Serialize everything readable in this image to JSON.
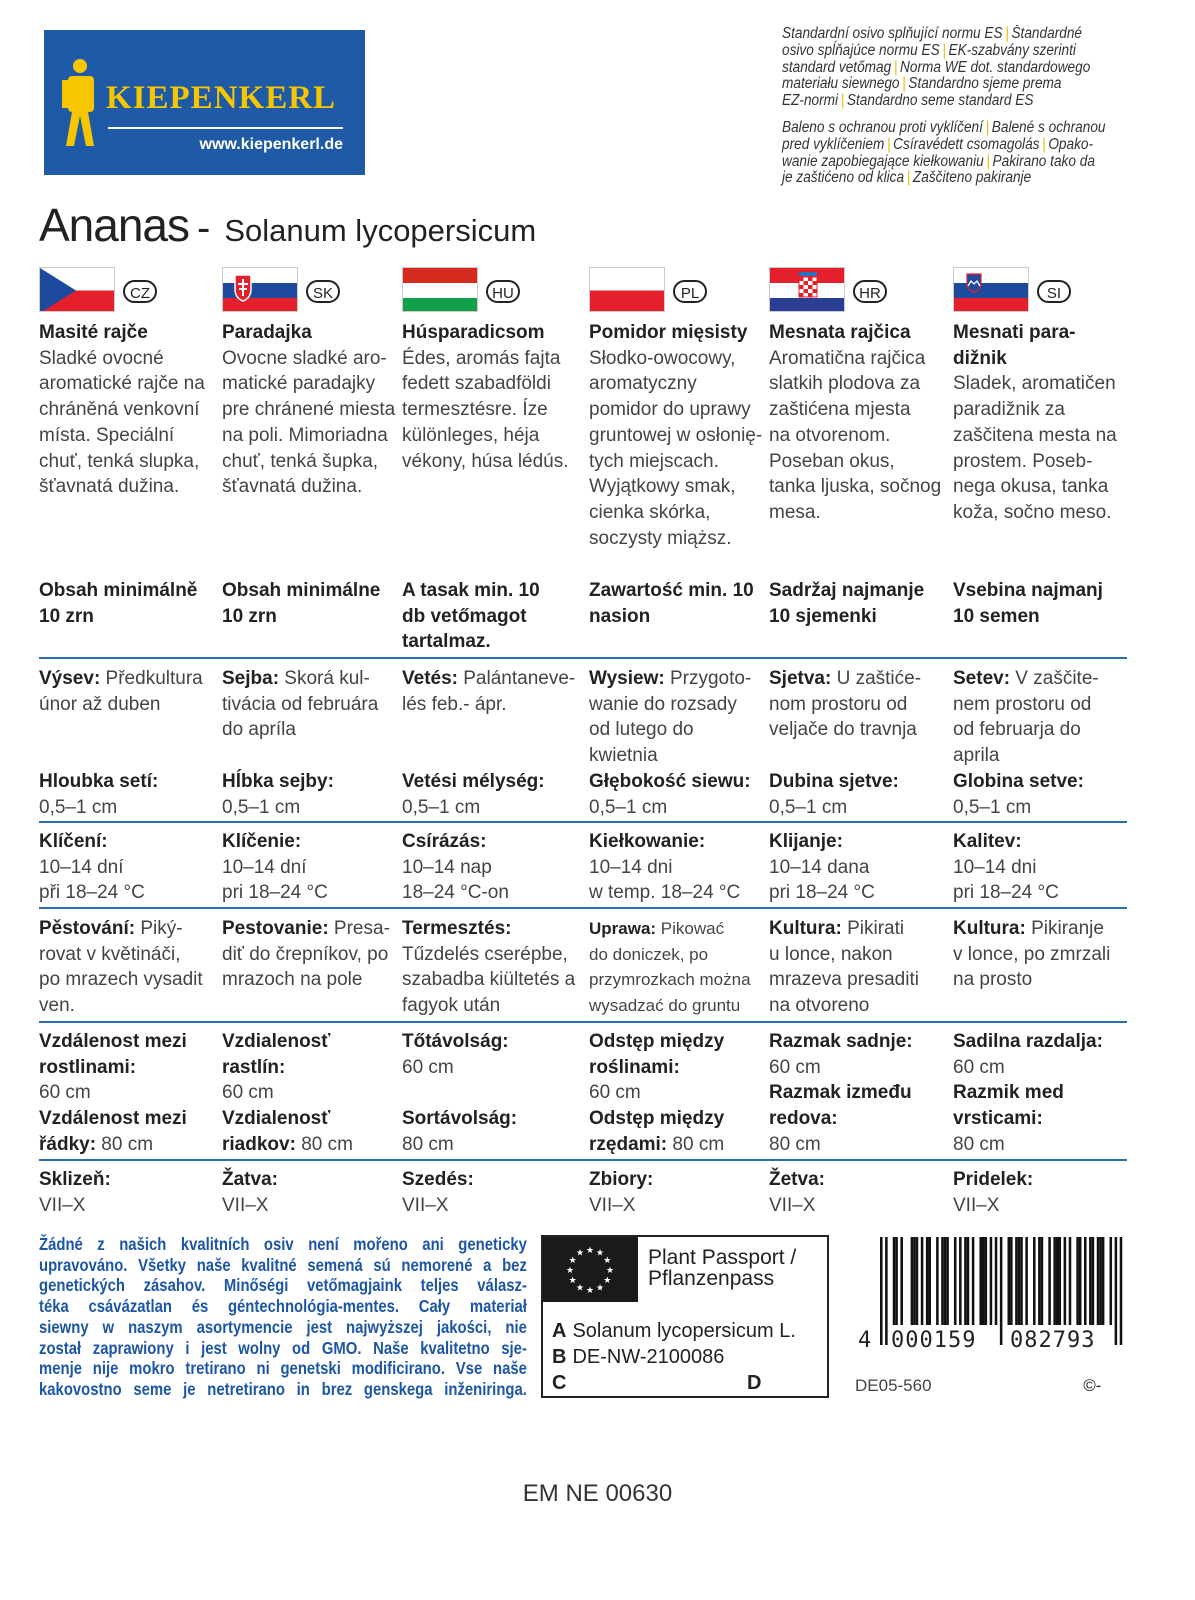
{
  "logo": {
    "brand": "KIEPENKERL",
    "url": "www.kiepenkerl.de",
    "color": "#1f5aa6"
  },
  "standards": [
    [
      [
        "Standardní osivo splňující normu ES",
        "Štandardné"
      ],
      [
        "osivo spĺňajúce normu ES",
        "EK-szabvány szerinti"
      ],
      [
        "standard vetőmag",
        "Norma WE dot. standardowego"
      ],
      [
        "materiału siewnego",
        "Standardno sjeme prema"
      ],
      [
        "EZ-normi",
        "Standardno seme standard ES"
      ]
    ],
    [
      [
        "Baleno s ochranou proti vyklíčení",
        "Balené s ochranou"
      ],
      [
        "pred vyklíčeniem",
        "Csíravédett csomagolás",
        "Opako-"
      ],
      [
        "wanie zapobiegające kiełkowaniu",
        "Pakirano tako da"
      ],
      [
        "je zaštićeno od klica",
        "Zaščiteno pakiranje"
      ]
    ]
  ],
  "title": {
    "name": "Ananas",
    "dash": "-",
    "latin": "Solanum lycopersicum"
  },
  "columns": [
    {
      "code": "CZ",
      "flag": "cz",
      "name": "Masité rajče",
      "desc": "Sladké ovocné\naromatické rajče na\nchráněná venkovní\nmísta. Speciální\nchuť, tenká slupka,\nšťavnatá dužina.",
      "min": "Obsah minimálně\n10 zrn",
      "sow_l": "Výsev:",
      "sow_t": " Předkultura\núnor až duben",
      "dep_l": "Hloubka setí:",
      "dep_v": "0,5–1 cm",
      "ger_l": "Klíčení:",
      "ger_v": "10–14 dní\npři 18–24 °C",
      "gro_l": "Pěstování:",
      "gro_t": " Piký-\nrovat v květináči,\npo mrazech vysadit\nven.",
      "sp1_l": "Vzdálenost mezi\nrostlinami:",
      "sp1_v": "\n60 cm",
      "sp2_l": "Vzdálenost mezi\nřádky:",
      "sp2_v": " 80 cm",
      "har_l": "Sklizeň:",
      "har_v": "VII–X"
    },
    {
      "code": "SK",
      "flag": "sk",
      "name": "Paradajka",
      "desc": "Ovocne sladké aro-\nmatické paradajky\npre chránené miesta\nna poli. Mimoriadna\nchuť, tenká šupka,\nšťavnatá dužina.",
      "min": "Obsah minimálne\n10 zrn",
      "sow_l": "Sejba:",
      "sow_t": " Skorá kul-\ntivácia od februára\ndo apríla",
      "dep_l": "Hĺbka sejby:",
      "dep_v": "0,5–1 cm",
      "ger_l": "Klíčenie:",
      "ger_v": "10–14 dní\npri 18–24 °C",
      "gro_l": "Pestovanie:",
      "gro_t": " Presa-\ndiť do črepníkov, po\nmrazoch na pole",
      "sp1_l": "Vzdialenosť\nrastlín:",
      "sp1_v": "\n60 cm",
      "sp2_l": "Vzdialenosť\nriadkov:",
      "sp2_v": " 80 cm",
      "har_l": "Žatva:",
      "har_v": "VII–X"
    },
    {
      "code": "HU",
      "flag": "hu",
      "name": "Húsparadicsom",
      "desc": "Édes, aromás fajta\nfedett szabadföldi\ntermesztésre. Íze\nkülönleges, héja\nvékony, húsa lédús.",
      "min": "A tasak min. 10\ndb vetőmagot\ntartalmaz.",
      "sow_l": "Vetés:",
      "sow_t": " Palántaneve-\nlés feb.- ápr.",
      "dep_l": "Vetési mélység:",
      "dep_v": "0,5–1 cm",
      "ger_l": "Csírázás:",
      "ger_v": "10–14 nap\n18–24 °C-on",
      "gro_l": "Termesztés:",
      "gro_t": "\nTűzdelés cserépbe,\nszabadba kiültetés a\nfagyok után",
      "sp1_l": "Tőtávolság:",
      "sp1_v": "\n60 cm",
      "sp2_l": "Sortávolság:",
      "sp2_v": "\n80 cm",
      "har_l": "Szedés:",
      "har_v": "VII–X"
    },
    {
      "code": "PL",
      "flag": "pl",
      "name": "Pomidor mięsisty",
      "desc": "Słodko-owocowy,\naromatyczny\npomidor do uprawy\ngruntowej w osłonię-\ntych miejscach.\nWyjątkowy smak,\ncienka skórka,\nsoczysty miąższ.",
      "min": "Zawartość min. 10\nnasion",
      "sow_l": "Wysiew:",
      "sow_t": " Przygoto-\nwanie do rozsady\nod lutego do\nkwietnia",
      "dep_l": "Głębokość siewu:",
      "dep_v": "0,5–1 cm",
      "ger_l": "Kiełkowanie:",
      "ger_v": "10–14 dni\nw temp. 18–24 °C",
      "gro_l": "Uprawa:",
      "gro_t": " Pikować\ndo doniczek, po\nprzymrozkach można\nwysadzać do gruntu",
      "sp1_l": "Odstęp między\nroślinami:",
      "sp1_v": "\n60 cm",
      "sp2_l": "Odstęp między\nrzędami:",
      "sp2_v": " 80 cm",
      "har_l": "Zbiory:",
      "har_v": "VII–X"
    },
    {
      "code": "HR",
      "flag": "hr",
      "name": "Mesnata rajčica",
      "desc": "Aromatična rajčica\nslatkih plodova za\nzaštićena mjesta\nna otvorenom.\nPoseban okus,\ntanka ljuska, sočnog\nmesa.",
      "min": "Sadržaj najmanje\n10 sjemenki",
      "sow_l": "Sjetva:",
      "sow_t": " U zaštiće-\nnom prostoru od\nveljače do travnja",
      "dep_l": "Dubina sjetve:",
      "dep_v": "0,5–1 cm",
      "ger_l": "Klijanje:",
      "ger_v": "10–14 dana\npri 18–24 °C",
      "gro_l": "Kultura:",
      "gro_t": " Pikirati\nu lonce, nakon\nmrazeva presaditi\nna otvoreno",
      "sp1_l": "Razmak sadnje:",
      "sp1_v": "\n60 cm",
      "sp2_l": "Razmak između\nredova:",
      "sp2_v": "\n80 cm",
      "har_l": "Žetva:",
      "har_v": "VII–X"
    },
    {
      "code": "SI",
      "flag": "si",
      "name": "Mesnati para-\ndižnik",
      "desc": "Sladek, aromatičen\nparadižnik za\nzaščitena mesta na\nprostem. Poseb-\nnega okusa, tanka\nkoža, sočno meso.",
      "min": "Vsebina najmanj\n10 semen",
      "sow_l": "Setev:",
      "sow_t": " V zaščite-\nnem prostoru od\nod februarja do\naprila",
      "dep_l": "Globina setve:",
      "dep_v": "0,5–1 cm",
      "ger_l": "Kalitev:",
      "ger_v": "10–14 dni\npri 18–24 °C",
      "gro_l": "Kultura:",
      "gro_t": " Pikiranje\nv lonce, po zmrzali\nna prosto",
      "sp1_l": "Sadilna razdalja:",
      "sp1_v": "\n60 cm",
      "sp2_l": "Razmik med\nvrsticami:",
      "sp2_v": "\n80 cm",
      "har_l": "Pridelek:",
      "har_v": "VII–X"
    }
  ],
  "gmo_notice": {
    "color": "#1d56a5",
    "lines": [
      "Žádné z našich kvalitních osiv není mořeno ani geneticky",
      "upravováno. Všetky naše kvalitné semená sú nemorené a bez",
      "genetických zásahov. Minőségi vetőmagjaink teljes válasz-",
      "téka csávázatlan és géntechnológia-mentes. Cały materiał",
      "siewny w naszym asortymencie jest najwyższej jakości, nie",
      "został zaprawiony i jest wolny od GMO. Naše kvalitetno sje-",
      "menje nije mokro tretirano ni genetski modificirano. Vse naše",
      "kakovostno seme je netretirano in brez genskega inženiringa."
    ]
  },
  "passport": {
    "title1": "Plant Passport /",
    "title2": "Pflanzenpass",
    "a_key": "A",
    "a_val": "Solanum lycopersicum L.",
    "b_key": "B",
    "b_val": "DE-NW-2100086",
    "c_key": "C",
    "d_key": "D"
  },
  "barcode": {
    "lead": "4",
    "left": "000159",
    "right": "082793"
  },
  "lot_code": "DE05-560",
  "copyright": "©-",
  "article_code": "EM NE 00630",
  "rule_color": "#2f6db5"
}
